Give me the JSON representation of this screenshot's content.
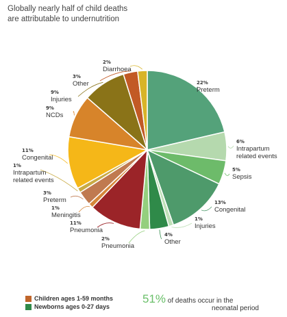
{
  "title_line1": "Globally nearly half of child deaths",
  "title_line2": "are attributable to undernutrition",
  "chart_data": {
    "type": "pie",
    "slices": [
      {
        "pct": 22,
        "label": [
          "Preterm"
        ],
        "color": "#54a27a",
        "group": "newborn"
      },
      {
        "pct": 6,
        "label": [
          "Intrapartum",
          "related events"
        ],
        "color": "#b5d9ae",
        "group": "newborn"
      },
      {
        "pct": 5,
        "label": [
          "Sepsis"
        ],
        "color": "#6dbb6a",
        "group": "newborn"
      },
      {
        "pct": 13,
        "label": [
          "Congenital"
        ],
        "color": "#4e9a6b",
        "group": "newborn"
      },
      {
        "pct": 1,
        "label": [
          "Injuries"
        ],
        "color": "#bfe0b8",
        "group": "newborn"
      },
      {
        "pct": 4,
        "label": [
          "Other"
        ],
        "color": "#2f8a49",
        "group": "newborn"
      },
      {
        "pct": 2,
        "label": [
          "Pneumonia"
        ],
        "color": "#94cf7e",
        "group": "newborn"
      },
      {
        "pct": 11,
        "label": [
          "Pneumonia"
        ],
        "color": "#9b2428",
        "group": "child"
      },
      {
        "pct": 1,
        "label": [
          "Meningitis"
        ],
        "color": "#d6873a",
        "group": "child"
      },
      {
        "pct": 3,
        "label": [
          "Preterm"
        ],
        "color": "#c07a50",
        "group": "child"
      },
      {
        "pct": 1,
        "label": [
          "Intrapartum",
          "related events"
        ],
        "color": "#c9ab45",
        "group": "child"
      },
      {
        "pct": 11,
        "label": [
          "Congenital"
        ],
        "color": "#f5b718",
        "group": "child"
      },
      {
        "pct": 9,
        "label": [
          "NCDs"
        ],
        "color": "#d7842a",
        "group": "child"
      },
      {
        "pct": 9,
        "label": [
          "Injuries"
        ],
        "color": "#8a7318",
        "group": "child"
      },
      {
        "pct": 3,
        "label": [
          "Other"
        ],
        "color": "#c25a25",
        "group": "child"
      },
      {
        "pct": 2,
        "label": [
          "Diarrhoea"
        ],
        "color": "#d8b428",
        "group": "child"
      }
    ]
  },
  "legend": {
    "children": {
      "label": "Children ages 1-59 months",
      "color": "#c0662b"
    },
    "newborns": {
      "label": "Newborns ages 0-27 days",
      "color": "#2f8a49"
    }
  },
  "note": {
    "value": "51%",
    "text1": " of deaths occur in the",
    "text2": "neonatal period"
  }
}
